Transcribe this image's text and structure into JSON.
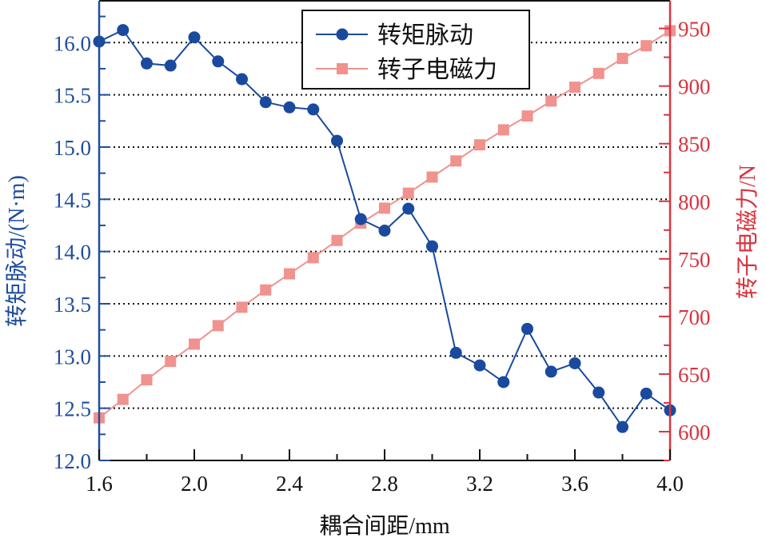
{
  "chart_data": {
    "type": "line",
    "title": "",
    "xlabel": "耦合间距/mm",
    "ylabel": "转矩脉动/(N·m)",
    "ylabel_right": "转子电磁力/N",
    "xlim": [
      1.6,
      4.0
    ],
    "ylim": [
      12.0,
      16.4
    ],
    "ylim_right": [
      575,
      974
    ],
    "x_ticks": [
      "1.6",
      "2.0",
      "2.4",
      "2.8",
      "3.2",
      "3.6",
      "4.0"
    ],
    "y_ticks": [
      "12.0",
      "12.5",
      "13.0",
      "13.5",
      "14.0",
      "14.5",
      "15.0",
      "15.5",
      "16.0"
    ],
    "y_ticks_right": [
      "600",
      "650",
      "700",
      "750",
      "800",
      "850",
      "900",
      "950"
    ],
    "grid": "horizontal dotted at left major ticks",
    "legend_position": "top center",
    "x": [
      1.6,
      1.7,
      1.8,
      1.9,
      2.0,
      2.1,
      2.2,
      2.3,
      2.4,
      2.5,
      2.6,
      2.7,
      2.8,
      2.9,
      3.0,
      3.1,
      3.2,
      3.3,
      3.4,
      3.5,
      3.6,
      3.7,
      3.8,
      3.9,
      4.0
    ],
    "series": [
      {
        "name": "转矩脉动",
        "axis": "left",
        "marker": "circle",
        "color": "#1a4a9e",
        "values": [
          16.01,
          16.12,
          15.8,
          15.78,
          16.05,
          15.82,
          15.65,
          15.43,
          15.38,
          15.36,
          15.06,
          14.31,
          14.2,
          14.41,
          14.05,
          13.03,
          12.91,
          12.75,
          13.26,
          12.85,
          12.93,
          12.65,
          12.32,
          12.64,
          12.48
        ]
      },
      {
        "name": "转子电磁力",
        "axis": "right",
        "marker": "square",
        "color": "#f0928e",
        "values": [
          612,
          628,
          645,
          661,
          676,
          692,
          708,
          723,
          737,
          751,
          766,
          781,
          794,
          807,
          821,
          835,
          849,
          862,
          874,
          887,
          899,
          911,
          924,
          935,
          948
        ]
      }
    ]
  },
  "colors": {
    "left_axis": "#1f4e9c",
    "right_axis": "#d8343f",
    "grid": "#111111"
  }
}
